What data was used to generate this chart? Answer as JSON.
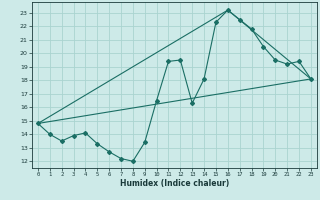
{
  "title": "",
  "xlabel": "Humidex (Indice chaleur)",
  "bg_color": "#cdeae8",
  "grid_color": "#aad4d0",
  "line_color": "#1a6e64",
  "xlim": [
    -0.5,
    23.5
  ],
  "ylim": [
    11.5,
    23.8
  ],
  "yticks": [
    12,
    13,
    14,
    15,
    16,
    17,
    18,
    19,
    20,
    21,
    22,
    23
  ],
  "xticks": [
    0,
    1,
    2,
    3,
    4,
    5,
    6,
    7,
    8,
    9,
    10,
    11,
    12,
    13,
    14,
    15,
    16,
    17,
    18,
    19,
    20,
    21,
    22,
    23
  ],
  "line1_x": [
    0,
    1,
    2,
    3,
    4,
    5,
    6,
    7,
    8,
    9,
    10,
    11,
    12,
    13,
    14,
    15,
    16,
    17,
    18,
    19,
    20,
    21,
    22,
    23
  ],
  "line1_y": [
    14.8,
    14.0,
    13.5,
    13.9,
    14.1,
    13.3,
    12.7,
    12.2,
    12.0,
    13.4,
    16.5,
    19.4,
    19.5,
    16.3,
    18.1,
    22.3,
    23.2,
    22.5,
    21.8,
    20.5,
    19.5,
    19.2,
    19.4,
    18.1
  ],
  "line2_x": [
    0,
    23
  ],
  "line2_y": [
    14.8,
    18.1
  ],
  "line3_x": [
    0,
    16,
    23
  ],
  "line3_y": [
    14.8,
    23.2,
    18.1
  ]
}
